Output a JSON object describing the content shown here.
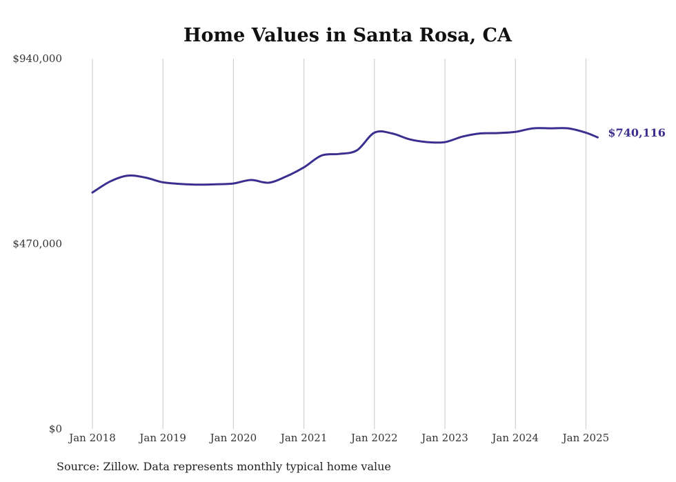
{
  "chart_data": {
    "type": "line",
    "title": "Home Values in Santa Rosa, CA",
    "xlabel": "",
    "ylabel": "",
    "ylim": [
      0,
      940000
    ],
    "y_ticks": [
      {
        "value": 0,
        "label": "$0"
      },
      {
        "value": 470000,
        "label": "$470,000"
      },
      {
        "value": 940000,
        "label": "$940,000"
      }
    ],
    "x_ticks": [
      {
        "value": "2018-01",
        "label": "Jan 2018"
      },
      {
        "value": "2019-01",
        "label": "Jan 2019"
      },
      {
        "value": "2020-01",
        "label": "Jan 2020"
      },
      {
        "value": "2021-01",
        "label": "Jan 2021"
      },
      {
        "value": "2022-01",
        "label": "Jan 2022"
      },
      {
        "value": "2023-01",
        "label": "Jan 2023"
      },
      {
        "value": "2024-01",
        "label": "Jan 2024"
      },
      {
        "value": "2025-01",
        "label": "Jan 2025"
      }
    ],
    "grid": "vertical",
    "series": [
      {
        "color": "#3a2f8f",
        "x": [
          "2018-01",
          "2018-04",
          "2018-07",
          "2018-10",
          "2019-01",
          "2019-04",
          "2019-07",
          "2019-10",
          "2020-01",
          "2020-04",
          "2020-07",
          "2020-10",
          "2021-01",
          "2021-04",
          "2021-07",
          "2021-10",
          "2022-01",
          "2022-04",
          "2022-07",
          "2022-10",
          "2023-01",
          "2023-04",
          "2023-07",
          "2023-10",
          "2024-01",
          "2024-04",
          "2024-07",
          "2024-10",
          "2025-01",
          "2025-03"
        ],
        "y": [
          600000,
          628000,
          643000,
          638000,
          626000,
          622000,
          620000,
          621000,
          623000,
          632000,
          625000,
          641000,
          664000,
          694000,
          698000,
          707000,
          752000,
          750000,
          735000,
          728000,
          728000,
          742000,
          750000,
          751000,
          754000,
          763000,
          763000,
          763000,
          752000,
          740116
        ]
      }
    ],
    "end_label": "$740,116",
    "source_note": "Source: Zillow. Data represents monthly typical home value"
  }
}
